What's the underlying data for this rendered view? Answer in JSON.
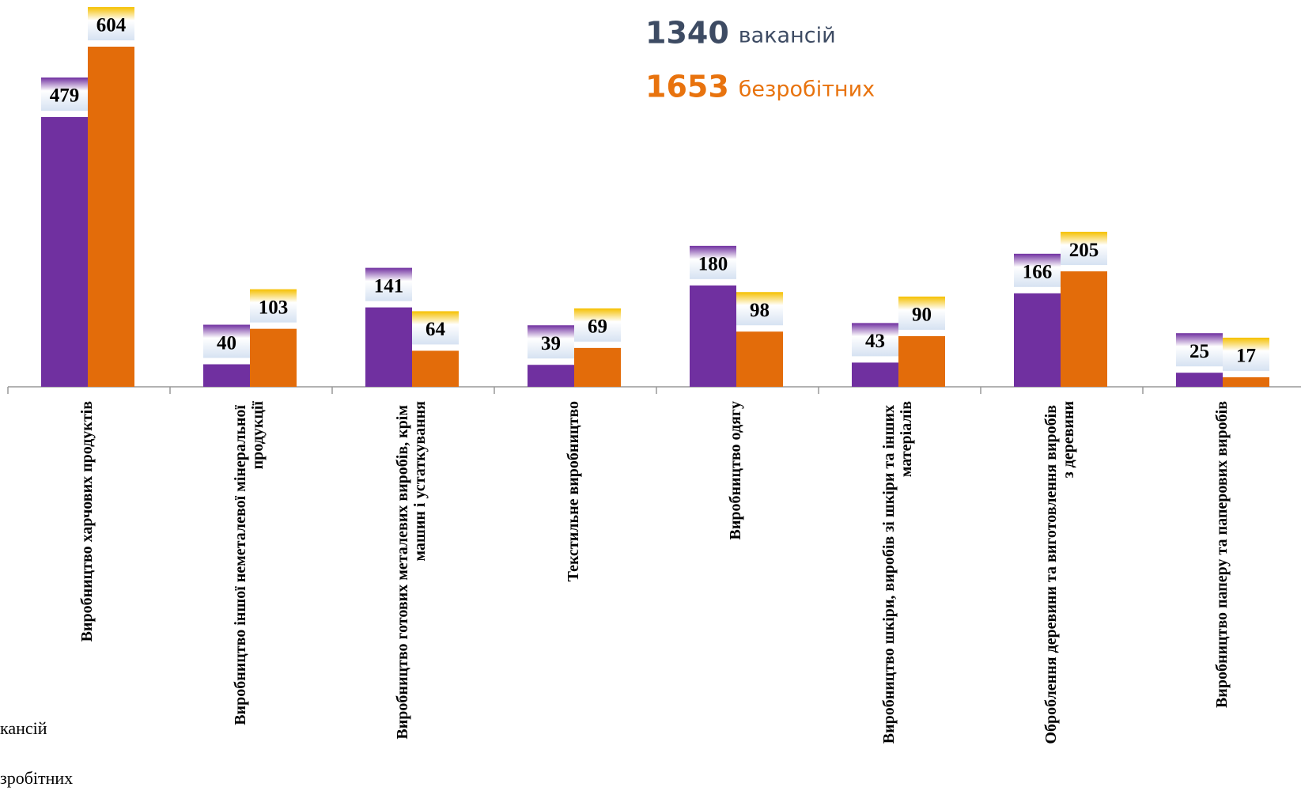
{
  "chart_data": {
    "type": "bar",
    "categories": [
      "Виробництво харчових продуктів",
      "Виробництво іншої неметалевої мінеральної продукції",
      "Виробництво готових металевих виробів, крім машин і устаткування",
      "Текстильне виробництво",
      "Виробництво одягу",
      "Виробництво шкіри, виробів зі шкіри та інших матеріалів",
      "Оброблення деревини та виготовлення виробів з деревини",
      "Виробництво паперу та паперових виробів"
    ],
    "series": [
      {
        "name": "вакансій",
        "total": 1340,
        "color": "#7030a0",
        "label_color": "#3d4b63",
        "values": [
          479,
          40,
          141,
          39,
          180,
          43,
          166,
          25
        ]
      },
      {
        "name": "безробітних",
        "total": 1653,
        "color": "#e36c0a",
        "label_color": "#e8730e",
        "values": [
          604,
          103,
          64,
          69,
          98,
          90,
          205,
          17
        ]
      }
    ],
    "clipped_labels": [
      "кансій",
      "зробітних"
    ]
  }
}
